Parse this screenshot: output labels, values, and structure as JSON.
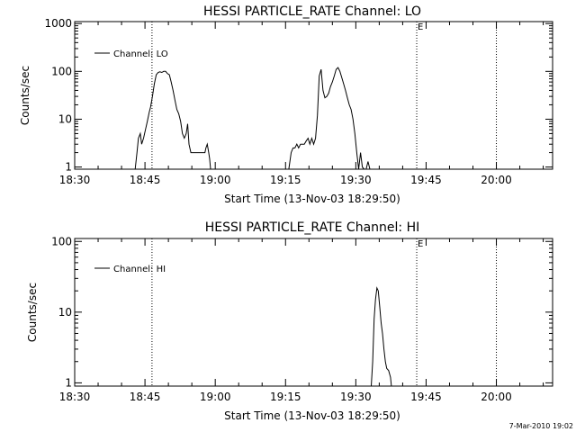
{
  "figure": {
    "footer_timestamp": "7-Mar-2010 19:02"
  },
  "chart_data": [
    {
      "type": "line",
      "title": "HESSI PARTICLE_RATE Channel: LO",
      "xlabel": "Start Time (13-Nov-03 18:29:50)",
      "ylabel": "Counts/sec",
      "yscale": "log",
      "ylim": [
        0.9,
        1100
      ],
      "xlim_minutes": [
        0,
        102
      ],
      "xticks": [
        {
          "t": 0,
          "label": "18:30"
        },
        {
          "t": 15,
          "label": "18:45"
        },
        {
          "t": 30,
          "label": "19:00"
        },
        {
          "t": 45,
          "label": "19:15"
        },
        {
          "t": 60,
          "label": "19:30"
        },
        {
          "t": 75,
          "label": "19:45"
        },
        {
          "t": 90,
          "label": "20:00"
        }
      ],
      "yticks": [
        {
          "v": 1,
          "label": "1"
        },
        {
          "v": 10,
          "label": "10"
        },
        {
          "v": 100,
          "label": "100"
        },
        {
          "v": 1000,
          "label": "1000"
        }
      ],
      "grid": false,
      "legend": {
        "position": "top-left",
        "entries": [
          "Channel: LO"
        ]
      },
      "markers": [
        {
          "t": 16.5,
          "label": ""
        },
        {
          "t": 73,
          "label": "E"
        },
        {
          "t": 90,
          "label": ""
        }
      ],
      "series": [
        {
          "name": "Channel: LO",
          "segments": [
            [
              [
                12.9,
                0.9
              ],
              [
                13.3,
                2
              ],
              [
                13.6,
                4
              ],
              [
                14,
                5
              ],
              [
                14.3,
                3
              ],
              [
                14.7,
                4
              ],
              [
                15.1,
                6
              ],
              [
                15.5,
                9
              ],
              [
                15.9,
                14
              ],
              [
                16.2,
                18
              ],
              [
                16.6,
                30
              ],
              [
                17,
                55
              ],
              [
                17.4,
                85
              ],
              [
                17.8,
                95
              ],
              [
                18.2,
                98
              ],
              [
                18.6,
                95
              ],
              [
                19,
                100
              ],
              [
                19.4,
                100
              ],
              [
                19.8,
                90
              ],
              [
                20.2,
                85
              ],
              [
                20.6,
                60
              ],
              [
                21,
                40
              ],
              [
                21.4,
                25
              ],
              [
                21.8,
                16
              ],
              [
                22.2,
                13
              ],
              [
                22.6,
                9
              ],
              [
                23,
                5
              ],
              [
                23.4,
                4
              ],
              [
                23.8,
                5
              ],
              [
                24.1,
                8
              ],
              [
                24.4,
                3
              ],
              [
                24.8,
                2
              ],
              [
                25.4,
                2
              ],
              [
                26,
                2
              ],
              [
                26.6,
                2
              ],
              [
                27.2,
                2
              ],
              [
                27.8,
                2
              ],
              [
                28,
                2.5
              ],
              [
                28.3,
                3
              ],
              [
                28.6,
                2
              ],
              [
                28.8,
                1.5
              ],
              [
                29,
                0.9
              ]
            ],
            [
              [
                45.7,
                0.9
              ],
              [
                46.2,
                2
              ],
              [
                46.6,
                2.5
              ],
              [
                47,
                2.5
              ],
              [
                47.4,
                3
              ],
              [
                47.8,
                2.5
              ],
              [
                48.2,
                3
              ],
              [
                48.6,
                3
              ],
              [
                49,
                3
              ],
              [
                49.4,
                3.5
              ],
              [
                49.8,
                4
              ],
              [
                50.2,
                3
              ],
              [
                50.6,
                4
              ],
              [
                51,
                3
              ],
              [
                51.4,
                4
              ],
              [
                51.8,
                12
              ],
              [
                52.2,
                80
              ],
              [
                52.6,
                110
              ],
              [
                53,
                40
              ],
              [
                53.4,
                28
              ],
              [
                53.8,
                30
              ],
              [
                54.2,
                35
              ],
              [
                54.6,
                48
              ],
              [
                55,
                60
              ],
              [
                55.4,
                80
              ],
              [
                55.8,
                110
              ],
              [
                56.2,
                120
              ],
              [
                56.6,
                100
              ],
              [
                57,
                75
              ],
              [
                57.4,
                55
              ],
              [
                57.8,
                40
              ],
              [
                58.2,
                28
              ],
              [
                58.6,
                20
              ],
              [
                59,
                16
              ],
              [
                59.4,
                10
              ],
              [
                59.8,
                5
              ],
              [
                60.2,
                2
              ],
              [
                60.6,
                0.9
              ]
            ],
            [
              [
                60.6,
                0.9
              ],
              [
                61,
                2
              ],
              [
                61.4,
                1
              ],
              [
                61.8,
                0.9
              ]
            ],
            [
              [
                62.2,
                0.9
              ],
              [
                62.6,
                1.3
              ],
              [
                63,
                0.9
              ]
            ]
          ]
        }
      ]
    },
    {
      "type": "line",
      "title": "HESSI PARTICLE_RATE Channel: HI",
      "xlabel": "Start Time (13-Nov-03 18:29:50)",
      "ylabel": "Counts/sec",
      "yscale": "log",
      "ylim": [
        0.9,
        110
      ],
      "xlim_minutes": [
        0,
        102
      ],
      "xticks": [
        {
          "t": 0,
          "label": "18:30"
        },
        {
          "t": 15,
          "label": "18:45"
        },
        {
          "t": 30,
          "label": "19:00"
        },
        {
          "t": 45,
          "label": "19:15"
        },
        {
          "t": 60,
          "label": "19:30"
        },
        {
          "t": 75,
          "label": "19:45"
        },
        {
          "t": 90,
          "label": "20:00"
        }
      ],
      "yticks": [
        {
          "v": 1,
          "label": "1"
        },
        {
          "v": 10,
          "label": "10"
        },
        {
          "v": 100,
          "label": "100"
        }
      ],
      "grid": false,
      "legend": {
        "position": "top-left",
        "entries": [
          "Channel: HI"
        ]
      },
      "markers": [
        {
          "t": 16.5,
          "label": ""
        },
        {
          "t": 73,
          "label": "E"
        },
        {
          "t": 90,
          "label": ""
        }
      ],
      "series": [
        {
          "name": "Channel: HI",
          "segments": [
            [
              [
                63.3,
                0.9
              ],
              [
                63.6,
                2
              ],
              [
                63.9,
                8
              ],
              [
                64.2,
                15
              ],
              [
                64.5,
                22
              ],
              [
                64.8,
                20
              ],
              [
                65.1,
                12
              ],
              [
                65.4,
                7
              ],
              [
                65.7,
                5
              ],
              [
                66,
                3
              ],
              [
                66.3,
                2
              ],
              [
                66.6,
                1.6
              ],
              [
                67,
                1.5
              ],
              [
                67.4,
                1.2
              ],
              [
                67.6,
                0.9
              ]
            ]
          ]
        }
      ]
    }
  ]
}
